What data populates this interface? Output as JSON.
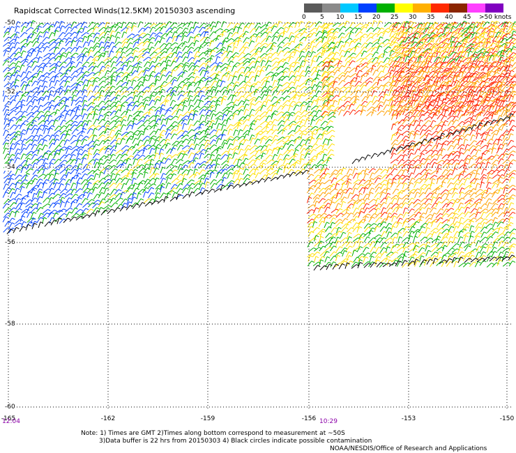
{
  "header": {
    "title": "Rapidscat Corrected Winds(12.5KM) 20150303 ascending"
  },
  "legend": {
    "labels": [
      "0",
      "5",
      "10",
      "15",
      "20",
      "25",
      "30",
      "35",
      "40",
      "45",
      ">50 knots"
    ],
    "colors": [
      "#5a5a5a",
      "#8a8a8a",
      "#00c8ff",
      "#0040ff",
      "#00b000",
      "#ffff00",
      "#ffb000",
      "#ff2a00",
      "#8b2500",
      "#ff40ff",
      "#8000c0"
    ]
  },
  "map": {
    "x_ticks": [
      "-165",
      "-162",
      "-159",
      "-156",
      "-153",
      "-150"
    ],
    "y_ticks": [
      "-50",
      "-52",
      "-54",
      "-56",
      "-58",
      "-60"
    ],
    "times": [
      "12:04",
      "10:29"
    ],
    "pass_colors": {
      "blue": "#0040ff",
      "green": "#00b000",
      "yellow": "#ffe000",
      "orange": "#ffa000",
      "red": "#ff2000",
      "black": "#000000"
    }
  },
  "footer": {
    "note1": "Note: 1) Times are GMT 2)Times along bottom correspond to measurement at ~50S",
    "note2": "3)Data buffer is 22 hrs from 20150303 4) Black circles indicate possible contamination",
    "credit": "NOAA/NESDIS/Office of Research and Applications"
  }
}
